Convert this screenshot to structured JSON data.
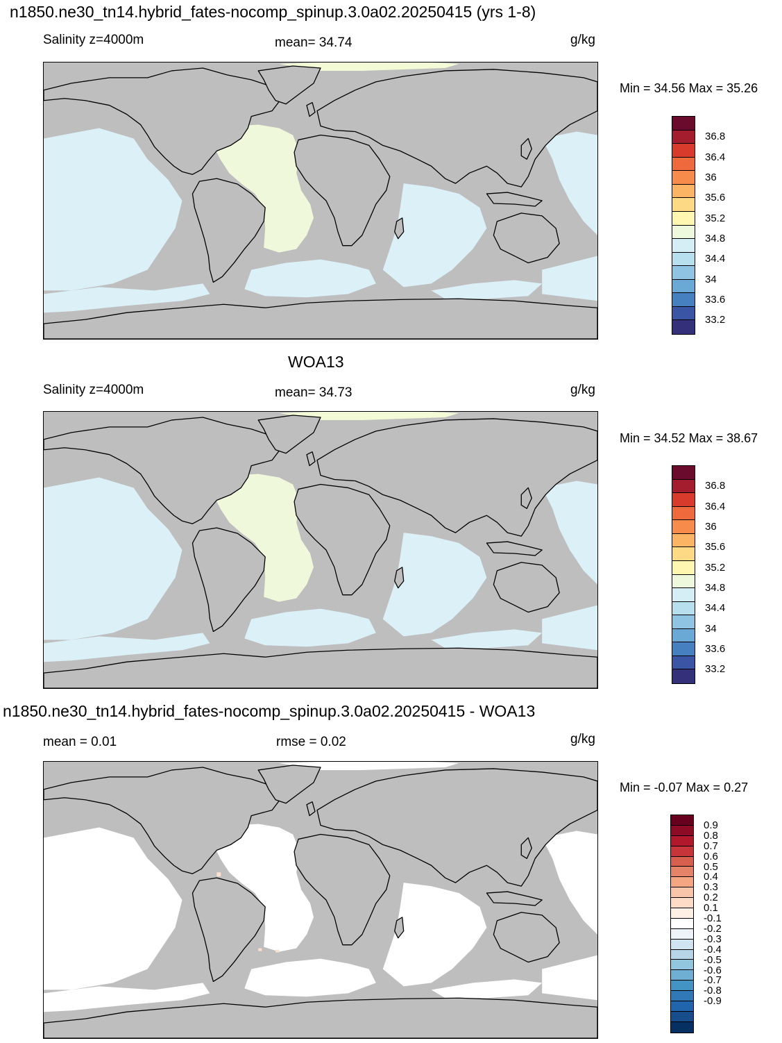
{
  "panels": [
    {
      "title": "n1850.ne30_tn14.hybrid_fates-nocomp_spinup.3.0a02.20250415 (yrs 1-8)",
      "left_label": "Salinity z=4000m",
      "center_label": "mean=  34.74",
      "units": "g/kg",
      "minmax": "Min =  34.56 Max =  35.26",
      "colorbar": {
        "colors": [
          "#6a0a2c",
          "#a31d2e",
          "#d83a2b",
          "#ee6a3d",
          "#f68b4b",
          "#fbb463",
          "#fdd985",
          "#fef6b1",
          "#eef8dc",
          "#d5eef6",
          "#b7dfee",
          "#8fc5e3",
          "#6aa8d6",
          "#4780c0",
          "#3a55a4",
          "#35307a"
        ],
        "labels": [
          "36.8",
          "36.4",
          "36",
          "35.6",
          "35.2",
          "34.8",
          "34.4",
          "34",
          "33.6",
          "33.2"
        ]
      }
    },
    {
      "title": "WOA13",
      "left_label": "Salinity z=4000m",
      "center_label": "mean=  34.73",
      "units": "g/kg",
      "minmax": "Min =  34.52 Max =  38.67",
      "colorbar": {
        "colors": [
          "#6a0a2c",
          "#a31d2e",
          "#d83a2b",
          "#ee6a3d",
          "#f68b4b",
          "#fbb463",
          "#fdd985",
          "#fef6b1",
          "#eef8dc",
          "#d5eef6",
          "#b7dfee",
          "#8fc5e3",
          "#6aa8d6",
          "#4780c0",
          "#3a55a4",
          "#35307a"
        ],
        "labels": [
          "36.8",
          "36.4",
          "36",
          "35.6",
          "35.2",
          "34.8",
          "34.4",
          "34",
          "33.6",
          "33.2"
        ]
      }
    },
    {
      "title": "n1850.ne30_tn14.hybrid_fates-nocomp_spinup.3.0a02.20250415 - WOA13",
      "left_label": "mean =   0.01",
      "center_label": "rmse =   0.02",
      "units": "g/kg",
      "minmax": "Min =  -0.07 Max =   0.27",
      "colorbar": {
        "colors": [
          "#67001f",
          "#8e0b26",
          "#b2182b",
          "#c7343a",
          "#d6604d",
          "#e58368",
          "#f4a582",
          "#f8c5aa",
          "#fddbc7",
          "#fff0e6",
          "#ffffff",
          "#eef4f9",
          "#d1e5f0",
          "#b6d6e8",
          "#92c5de",
          "#6eafd3",
          "#4393c3",
          "#3079b6",
          "#2166ac",
          "#164d8a",
          "#053061"
        ],
        "labels": [
          "0.9",
          "0.8",
          "0.7",
          "0.6",
          "0.5",
          "0.4",
          "0.3",
          "0.2",
          "0.1",
          "-0.1",
          "-0.2",
          "-0.3",
          "-0.4",
          "-0.5",
          "-0.6",
          "-0.7",
          "-0.8",
          "-0.9"
        ]
      }
    }
  ],
  "map_colors": {
    "land": "#bebebe",
    "ocean_main": "#dcf0f8",
    "atlantic": "#f0f8dc",
    "arctic": "#f2fad6",
    "diff_ocean": "#ffffff",
    "diff_spot": "#fde0d0",
    "coast": "#000000"
  }
}
